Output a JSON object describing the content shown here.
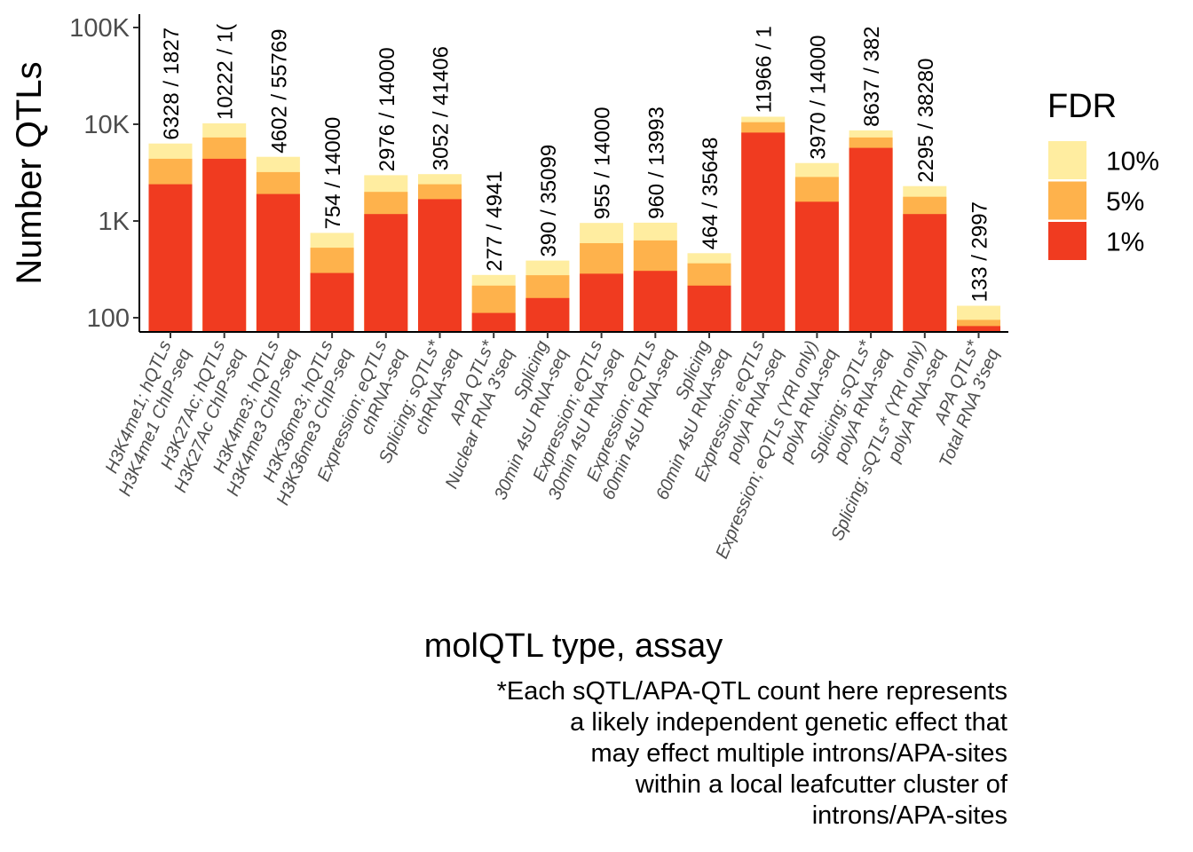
{
  "chart_data": {
    "type": "bar",
    "stacked": true,
    "log_scale_y": true,
    "ylabel": "Number QTLs",
    "xlabel": "molQTL type, assay",
    "ylim": [
      70,
      130000
    ],
    "yticks": [
      {
        "value": 100,
        "label": "100"
      },
      {
        "value": 1000,
        "label": "1K"
      },
      {
        "value": 10000,
        "label": "10K"
      },
      {
        "value": 100000,
        "label": "100K"
      }
    ],
    "legend": {
      "title": "FDR",
      "position": "right",
      "entries": [
        {
          "label": "10%",
          "color": "#FFEDA0"
        },
        {
          "label": "5%",
          "color": "#FEB24C"
        },
        {
          "label": "1%",
          "color": "#F03B20"
        }
      ]
    },
    "categories": [
      [
        "H3K4me1; hQTLs",
        "H3K4me1 ChIP-seq"
      ],
      [
        "H3K27Ac; hQTLs",
        "H3K27Ac ChIP-seq"
      ],
      [
        "H3K4me3; hQTLs",
        "H3K4me3 ChIP-seq"
      ],
      [
        "H3K36me3; hQTLs",
        "H3K36me3 ChIP-seq"
      ],
      [
        "Expression; eQTLs",
        "chRNA-seq"
      ],
      [
        "Splicing; sQTLs*",
        "chRNA-seq"
      ],
      [
        "APA QTLs*",
        "Nuclear RNA 3'seq"
      ],
      [
        "Splicing",
        "30min 4sU RNA-seq"
      ],
      [
        "Expression; eQTLs",
        "30min 4sU RNA-seq"
      ],
      [
        "Expression; eQTLs",
        "60min 4sU RNA-seq"
      ],
      [
        "Splicing",
        "60min 4sU RNA-seq"
      ],
      [
        "Expression; eQTLs",
        "polyA RNA-seq"
      ],
      [
        "Expression; eQTLs (YRI only)",
        "polyA RNA-seq"
      ],
      [
        "Splicing; sQTLs*",
        "polyA RNA-seq"
      ],
      [
        "Splicing; sQTLs* (YRI only)",
        "polyA RNA-seq"
      ],
      [
        "APA QTLs*",
        "Total RNA 3'seq"
      ]
    ],
    "series": [
      {
        "name": "1%",
        "values": [
          2400,
          4400,
          1900,
          290,
          1180,
          1680,
          112,
          160,
          285,
          305,
          215,
          8200,
          1580,
          5700,
          1180,
          82
        ]
      },
      {
        "name": "5%",
        "values": [
          4400,
          7300,
          3200,
          530,
          2000,
          2400,
          215,
          275,
          590,
          630,
          365,
          10500,
          2850,
          7300,
          1780,
          95
        ]
      },
      {
        "name": "10%",
        "values": [
          6328,
          10222,
          4602,
          754,
          2976,
          3052,
          277,
          390,
          955,
          960,
          464,
          11966,
          3970,
          8637,
          2295,
          133
        ]
      }
    ],
    "bar_labels": [
      "6328 / 1827",
      "10222 / 1(",
      "4602 / 55769",
      "754 / 14000",
      "2976 / 14000",
      "3052 / 41406",
      "277 / 4941",
      "390 / 35099",
      "955 / 14000",
      "960 / 13993",
      "464 / 35648",
      "11966 / 1",
      "3970 / 14000",
      "8637 / 382",
      "2295 / 38280",
      "133 / 2997"
    ]
  },
  "caption_lines": [
    "*Each sQTL/APA-QTL count here represents",
    "a likely independent genetic effect that",
    "may effect multiple introns/APA-sites",
    "within a local leafcutter cluster of",
    "introns/APA-sites"
  ]
}
